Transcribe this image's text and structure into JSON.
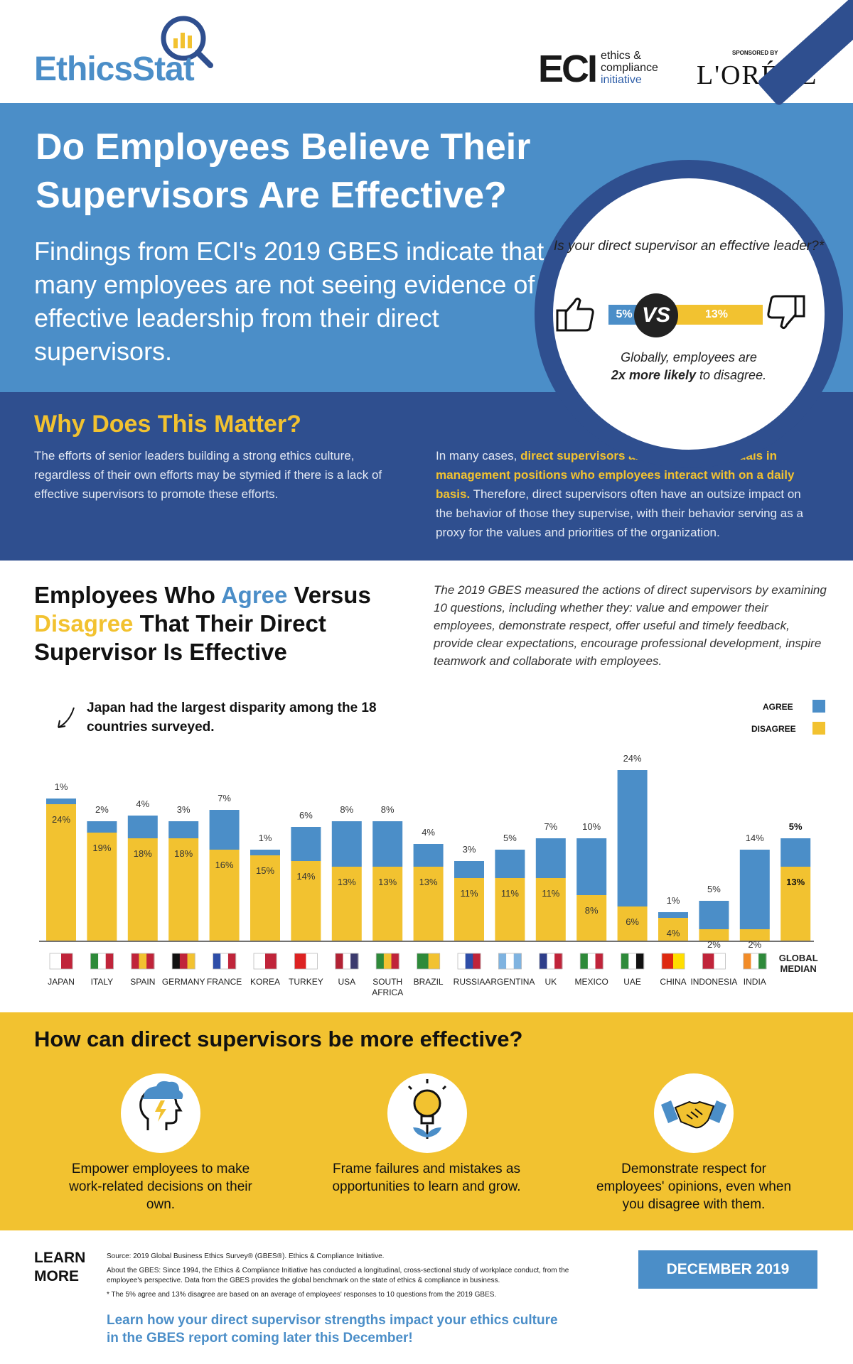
{
  "header": {
    "logo": "EthicsStat",
    "eci_mark": "ECI",
    "eci_lines": [
      "ethics &",
      "compliance",
      "initiative"
    ],
    "sponsored_by": "SPONSORED BY",
    "sponsor": "L'ORÉAL"
  },
  "hero": {
    "title": "Do Employees Believe Their Supervisors Are Effective?",
    "subtitle": "Findings from ECI's 2019 GBES indicate that many employees are not seeing evidence of effective leadership from their direct supervisors."
  },
  "magnifier": {
    "question": "Is your direct supervisor an effective leader?*",
    "agree_value": "5%",
    "vs": "VS",
    "disagree_value": "13%",
    "foot_plain_1": "Globally, employees are",
    "foot_bold": "2x more likely",
    "foot_plain_2": "to disagree."
  },
  "why": {
    "title": "Why Does This Matter?",
    "left": "The efforts of senior leaders building a strong ethics culture, regardless of their own efforts may be stymied if there is a lack of effective supervisors to promote these efforts.",
    "right_plain_1": "In many cases, ",
    "right_highlight": "direct supervisors are the only individuals in management positions who employees interact with on a daily basis.",
    "right_plain_2": " Therefore, direct supervisors often have an outsize impact on the behavior of those they supervise, with their behavior serving as a proxy for the values and priorities of the organization."
  },
  "chart_section": {
    "heading_1": "Employees Who ",
    "heading_agree": "Agree",
    "heading_2": " Versus",
    "heading_disagree": "Disagree",
    "heading_3": " That Their Direct Supervisor Is Effective",
    "method": "The 2019 GBES measured the actions of direct supervisors by examining 10 questions, including whether they: value and empower their employees, demonstrate respect, offer useful and timely feedback, provide clear expectations, encourage professional development, inspire teamwork and collaborate with employees.",
    "callout": "Japan had the largest disparity among the 18 countries surveyed.",
    "legend_agree": "AGREE",
    "legend_disagree": "DISAGREE"
  },
  "chart_data": {
    "type": "bar",
    "stacked": true,
    "categories": [
      "JAPAN",
      "ITALY",
      "SPAIN",
      "GERMANY",
      "FRANCE",
      "KOREA",
      "TURKEY",
      "USA",
      "SOUTH AFRICA",
      "BRAZIL",
      "RUSSIA",
      "ARGENTINA",
      "UK",
      "MEXICO",
      "UAE",
      "CHINA",
      "INDONESIA",
      "INDIA",
      "GLOBAL MEDIAN"
    ],
    "series": [
      {
        "name": "DISAGREE",
        "values": [
          24,
          19,
          18,
          18,
          16,
          15,
          14,
          13,
          13,
          13,
          11,
          11,
          11,
          8,
          6,
          4,
          2,
          2,
          13
        ]
      },
      {
        "name": "AGREE",
        "values": [
          1,
          2,
          4,
          3,
          7,
          1,
          6,
          8,
          8,
          4,
          3,
          5,
          7,
          10,
          24,
          1,
          5,
          14,
          5
        ]
      }
    ],
    "colors": {
      "AGREE": "#4b8ec8",
      "DISAGREE": "#f2c230"
    },
    "legend": "top-right",
    "grid": false,
    "ylim": [
      0,
      30
    ]
  },
  "how": {
    "title": "How can direct supervisors be more effective?",
    "tips": [
      {
        "icon": "head-lightning-icon",
        "text": "Empower employees to make work-related decisions on their own."
      },
      {
        "icon": "lightbulb-icon",
        "text": "Frame failures and mistakes as opportunities to learn and grow."
      },
      {
        "icon": "handshake-icon",
        "text": "Demonstrate respect for employees' opinions, even when you disagree with them."
      }
    ]
  },
  "footer": {
    "learn_more": "LEARN MORE",
    "source": "Source: 2019 Global Business Ethics Survey® (GBES®). Ethics & Compliance Initiative.",
    "about": "About the GBES: Since 1994, the Ethics & Compliance Initiative has conducted a longitudinal, cross-sectional study of workplace conduct, from the employee's perspective. Data from the GBES provides the global benchmark on the state of ethics & compliance in business.",
    "note": "* The 5% agree and 13% disagree are based on an average of employees' responses to 10 questions from the 2019 GBES.",
    "cta": "Learn how your direct supervisor strengths impact your ethics culture in the GBES report coming later this December!",
    "date": "DECEMBER 2019"
  }
}
